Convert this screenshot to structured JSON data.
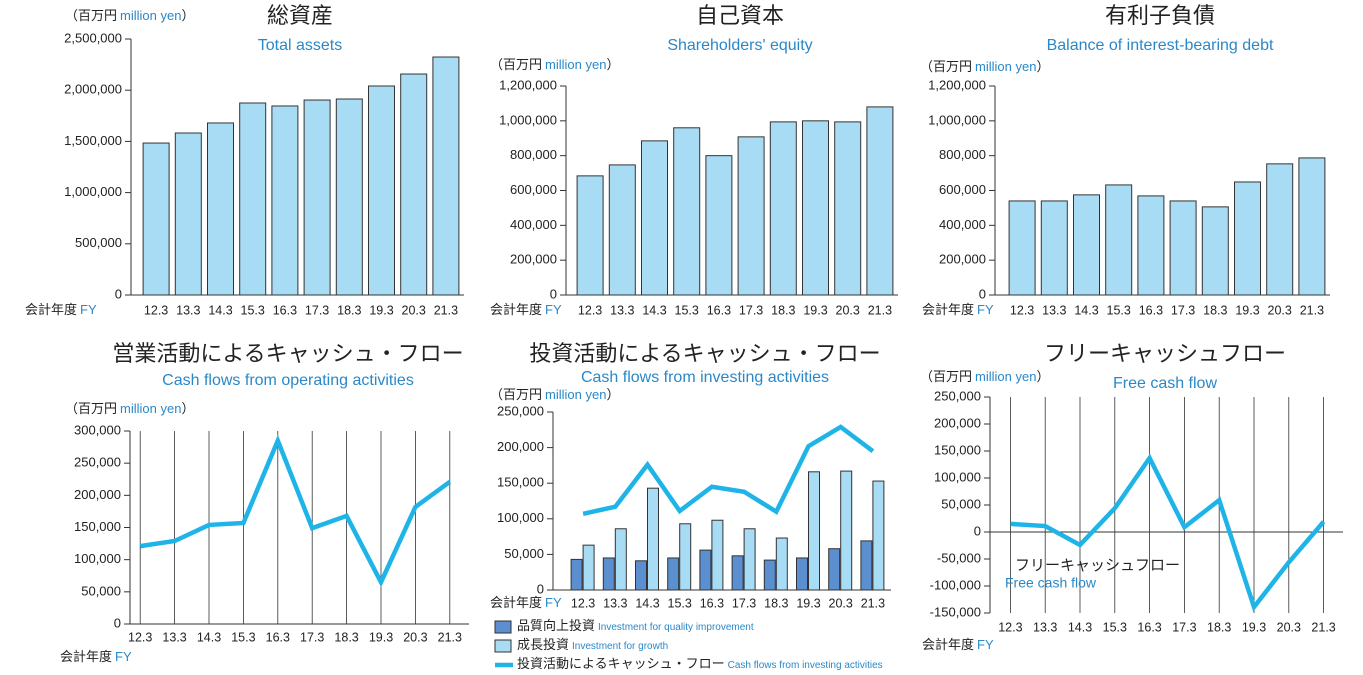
{
  "chart_data": [
    {
      "type": "bar",
      "title": "総資産",
      "subtitle": "Total assets",
      "unit_open": "（百万円",
      "unit_en": "million yen",
      "unit_close": "）",
      "x_label": "会計年度",
      "x_label_en": "FY",
      "categories": [
        "12.3",
        "13.3",
        "14.3",
        "15.3",
        "16.3",
        "17.3",
        "18.3",
        "19.3",
        "20.3",
        "21.3"
      ],
      "values": [
        1484000,
        1582000,
        1680000,
        1875000,
        1846000,
        1904000,
        1914000,
        2041000,
        2158000,
        2324000
      ],
      "color": "#a8dcf5",
      "ylim": [
        0,
        2500000
      ],
      "yticks": [
        0,
        {
          "value": 500000,
          "label": "500,000"
        },
        {
          "value": 1000000,
          "label": "1,000,000"
        },
        {
          "value": 1500000,
          "label": "1,500,000"
        },
        {
          "value": 2000000,
          "label": "2,000,000"
        },
        {
          "value": 2500000,
          "label": "2,500,000"
        }
      ],
      "grid_x": false
    },
    {
      "type": "bar",
      "title": "自己資本",
      "subtitle": "Shareholders' equity",
      "unit_open": "（百万円",
      "unit_en": "million yen",
      "unit_close": "）",
      "x_label": "会計年度",
      "x_label_en": "FY",
      "categories": [
        "12.3",
        "13.3",
        "14.3",
        "15.3",
        "16.3",
        "17.3",
        "18.3",
        "19.3",
        "20.3",
        "21.3"
      ],
      "values": [
        684000,
        747000,
        885000,
        960000,
        800000,
        908000,
        994000,
        1000000,
        994000,
        1080000
      ],
      "color": "#a8dcf5",
      "ylim": [
        0,
        1200000
      ],
      "yticks": [
        0,
        {
          "value": 200000,
          "label": "200,000"
        },
        {
          "value": 400000,
          "label": "400,000"
        },
        {
          "value": 600000,
          "label": "600,000"
        },
        {
          "value": 800000,
          "label": "800,000"
        },
        {
          "value": 1000000,
          "label": "1,000,000"
        },
        {
          "value": 1200000,
          "label": "1,200,000"
        }
      ],
      "grid_x": false
    },
    {
      "type": "bar",
      "title": "有利子負債",
      "subtitle": "Balance of interest-bearing debt",
      "unit_open": "（百万円",
      "unit_en": "million yen",
      "unit_close": "）",
      "x_label": "会計年度",
      "x_label_en": "FY",
      "categories": [
        "12.3",
        "13.3",
        "14.3",
        "15.3",
        "16.3",
        "17.3",
        "18.3",
        "19.3",
        "20.3",
        "21.3"
      ],
      "values": [
        540000,
        540000,
        575000,
        632000,
        569000,
        540000,
        506000,
        649000,
        753000,
        787000
      ],
      "color": "#a8dcf5",
      "ylim": [
        0,
        1200000
      ],
      "yticks": [
        0,
        {
          "value": 200000,
          "label": "200,000"
        },
        {
          "value": 400000,
          "label": "400,000"
        },
        {
          "value": 600000,
          "label": "600,000"
        },
        {
          "value": 800000,
          "label": "800,000"
        },
        {
          "value": 1000000,
          "label": "1,000,000"
        },
        {
          "value": 1200000,
          "label": "1,200,000"
        }
      ],
      "grid_x": false
    },
    {
      "type": "line",
      "title": "営業活動によるキャッシュ・フロー",
      "subtitle": "Cash flows from operating activities",
      "unit_open": "（百万円",
      "unit_en": "million yen",
      "unit_close": "）",
      "x_label": "会計年度",
      "x_label_en": "FY",
      "categories": [
        "12.3",
        "13.3",
        "14.3",
        "15.3",
        "16.3",
        "17.3",
        "18.3",
        "19.3",
        "20.3",
        "21.3"
      ],
      "values": [
        121000,
        129000,
        154000,
        157000,
        285000,
        149000,
        168000,
        65000,
        182000,
        221000
      ],
      "color": "#1fb4e8",
      "ylim": [
        0,
        300000
      ],
      "yticks": [
        0,
        {
          "value": 50000,
          "label": "50,000"
        },
        {
          "value": 100000,
          "label": "100,000"
        },
        {
          "value": 150000,
          "label": "150,000"
        },
        {
          "value": 200000,
          "label": "200,000"
        },
        {
          "value": 250000,
          "label": "250,000"
        },
        {
          "value": 300000,
          "label": "300,000"
        }
      ],
      "grid_x": true
    },
    {
      "type": "combo",
      "title": "投資活動によるキャッシュ・フロー",
      "subtitle": "Cash flows from investing activities",
      "unit_open": "（百万円",
      "unit_en": "million yen",
      "unit_close": "）",
      "x_label": "会計年度",
      "x_label_en": "FY",
      "categories": [
        "12.3",
        "13.3",
        "14.3",
        "15.3",
        "16.3",
        "17.3",
        "18.3",
        "19.3",
        "20.3",
        "21.3"
      ],
      "series": [
        {
          "name": "品質向上投資",
          "name_en": "Investment for quality improvement",
          "type": "bar",
          "color": "#5b8fd0",
          "values": [
            43000,
            45000,
            41000,
            45000,
            56000,
            48000,
            42000,
            45000,
            58000,
            69000
          ]
        },
        {
          "name": "成長投資",
          "name_en": "Investment for growth",
          "type": "bar",
          "color": "#a8dcf5",
          "values": [
            63000,
            86000,
            143000,
            93000,
            98000,
            86000,
            73000,
            166000,
            167000,
            153000
          ]
        },
        {
          "name": "投資活動によるキャッシュ・フロー",
          "name_en": "Cash flows from investing activities",
          "type": "line",
          "color": "#1fb4e8",
          "values": [
            107000,
            117000,
            176000,
            111000,
            145000,
            138000,
            110000,
            202000,
            229000,
            195000
          ]
        }
      ],
      "ylim": [
        0,
        250000
      ],
      "yticks": [
        0,
        {
          "value": 50000,
          "label": "50,000"
        },
        {
          "value": 100000,
          "label": "100,000"
        },
        {
          "value": 150000,
          "label": "150,000"
        },
        {
          "value": 200000,
          "label": "200,000"
        },
        {
          "value": 250000,
          "label": "250,000"
        }
      ],
      "grid_x": false
    },
    {
      "type": "line",
      "title": "フリーキャッシュフロー",
      "subtitle": "Free cash flow",
      "unit_open": "（百万円",
      "unit_en": "million yen",
      "unit_close": "）",
      "x_label": "会計年度",
      "x_label_en": "FY",
      "categories": [
        "12.3",
        "13.3",
        "14.3",
        "15.3",
        "16.3",
        "17.3",
        "18.3",
        "19.3",
        "20.3",
        "21.3"
      ],
      "series": [
        {
          "name": "フリーキャッシュフロー",
          "name_en": "Free cash flow",
          "color": "#1fb4e8",
          "values": [
            15000,
            11000,
            -24000,
            44000,
            137000,
            9000,
            59000,
            -139000,
            -56000,
            19000
          ]
        }
      ],
      "ylim": [
        -150000,
        250000
      ],
      "yticks": [
        {
          "value": -150000,
          "label": "-150,000"
        },
        {
          "value": -100000,
          "label": "-100,000"
        },
        {
          "value": -50000,
          "label": "-50,000"
        },
        0,
        {
          "value": 50000,
          "label": "50,000"
        },
        {
          "value": 100000,
          "label": "100,000"
        },
        {
          "value": 150000,
          "label": "150,000"
        },
        {
          "value": 200000,
          "label": "200,000"
        },
        {
          "value": 250000,
          "label": "250,000"
        }
      ],
      "grid_x": true
    }
  ]
}
